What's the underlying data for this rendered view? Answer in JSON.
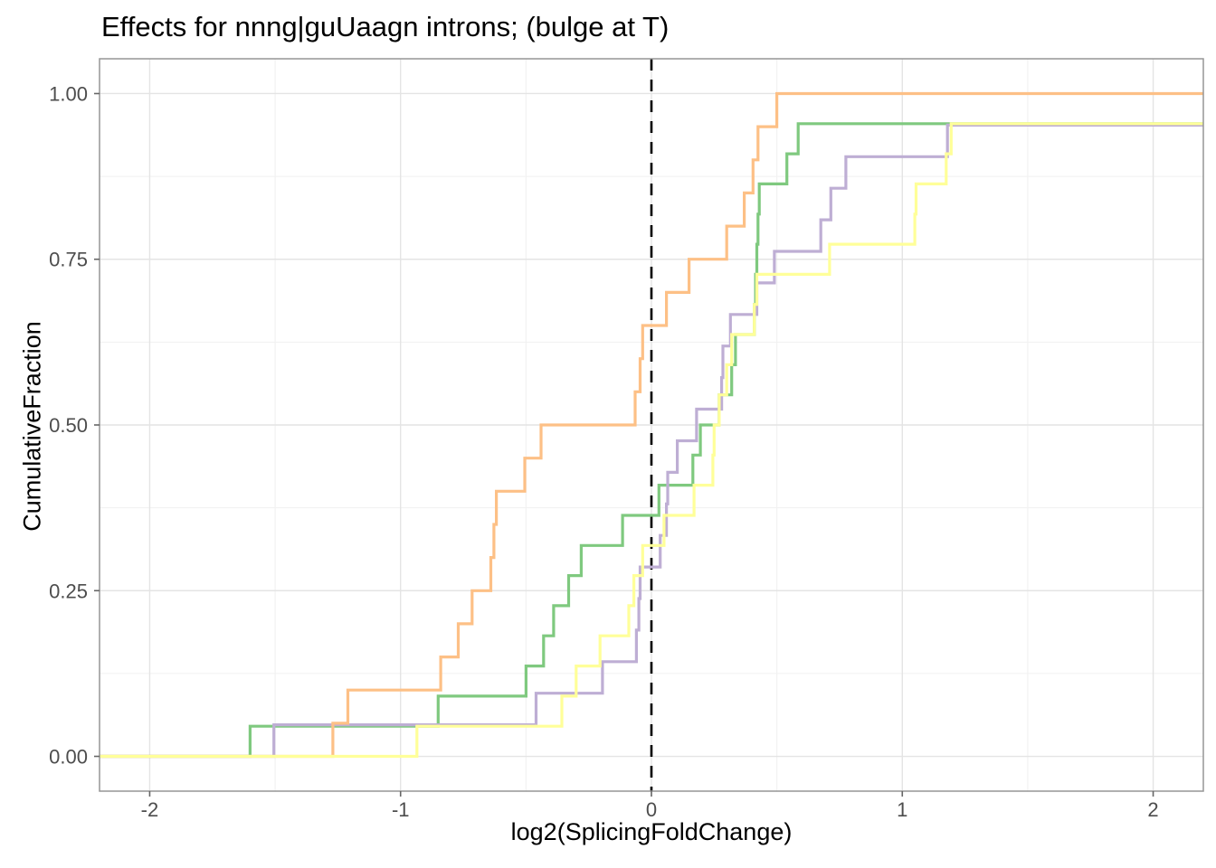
{
  "title": "Effects for nnng|guUaagn introns; (bulge at T)",
  "axes": {
    "x": {
      "label": "log2(SplicingFoldChange)",
      "tick_labels": [
        "-2",
        "-1",
        "0",
        "1",
        "2"
      ],
      "tick_values": [
        -2,
        -1,
        0,
        1,
        2
      ],
      "minor_values": [
        -1.5,
        -0.5,
        0.5,
        1.5
      ],
      "lim": [
        -2.2,
        2.2
      ]
    },
    "y": {
      "label": "CumulativeFraction",
      "tick_labels": [
        "0.00",
        "0.25",
        "0.50",
        "0.75",
        "1.00"
      ],
      "tick_values": [
        0,
        0.25,
        0.5,
        0.75,
        1
      ],
      "minor_values": [
        0.125,
        0.375,
        0.625,
        0.875
      ],
      "lim": [
        -0.0525,
        1.0525
      ]
    }
  },
  "style": {
    "grid_major_color": "#e4e4e4",
    "grid_minor_color": "#f1f1f1",
    "panel_border_color": "#969696",
    "tick_mark_color": "#666666",
    "tick_label_color": "#4d4d4d",
    "title_color": "#000000",
    "background": "#ffffff"
  },
  "vline": {
    "x": 0,
    "color": "#000000",
    "dash": [
      13,
      10
    ],
    "width": 2.6
  },
  "chart_data": {
    "type": "line",
    "subtype": "step_ecdf",
    "title": "Effects for nnng|guUaagn introns; (bulge at T)",
    "xlabel": "log2(SplicingFoldChange)",
    "ylabel": "CumulativeFraction",
    "xlim": [
      -2.2,
      2.2
    ],
    "ylim": [
      -0.0525,
      1.0525
    ],
    "grid": true,
    "legend": "none",
    "note": "Each series is an empirical CDF: starts at y=0 at x=-2.2; at each step_x the curve rises by 1/n; series drawn in array order (yellow on top).",
    "series": [
      {
        "name": "green",
        "color": "#7fc97f",
        "n": 22,
        "step_x": [
          -1.6,
          -0.85,
          -0.5,
          -0.43,
          -0.39,
          -0.33,
          -0.28,
          -0.115,
          0.03,
          0.165,
          0.195,
          0.27,
          0.32,
          0.335,
          0.41,
          0.415,
          0.42,
          0.425,
          0.43,
          0.54,
          0.585
        ],
        "final_level": 0.9545
      },
      {
        "name": "purple",
        "color": "#beaed4",
        "n": 21,
        "step_x": [
          -1.505,
          -0.46,
          -0.195,
          -0.06,
          -0.05,
          -0.045,
          0.035,
          0.06,
          0.065,
          0.103,
          0.18,
          0.28,
          0.285,
          0.315,
          0.42,
          0.49,
          0.675,
          0.715,
          0.775,
          1.18
        ],
        "final_level": 0.9524
      },
      {
        "name": "orange",
        "color": "#fdc086",
        "n": 20,
        "step_x": [
          -1.27,
          -1.21,
          -0.84,
          -0.77,
          -0.715,
          -0.64,
          -0.628,
          -0.618,
          -0.505,
          -0.44,
          -0.065,
          -0.045,
          -0.035,
          0.06,
          0.15,
          0.3,
          0.37,
          0.405,
          0.425,
          0.5
        ],
        "final_level": 1.0
      },
      {
        "name": "yellow",
        "color": "#ffff99",
        "n": 22,
        "step_x": [
          -0.935,
          -0.357,
          -0.3,
          -0.205,
          -0.09,
          -0.07,
          -0.035,
          0.05,
          0.17,
          0.245,
          0.25,
          0.27,
          0.3,
          0.32,
          0.41,
          0.42,
          0.71,
          1.05,
          1.055,
          1.175,
          1.195
        ],
        "final_level": 0.9545
      }
    ]
  }
}
